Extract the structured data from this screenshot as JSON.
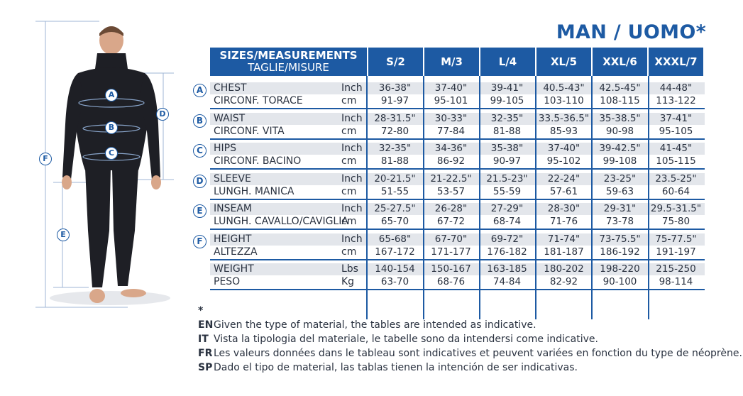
{
  "title": "MAN / UOMO*",
  "header": {
    "line1": "SIZES/MEASUREMENTS",
    "line2": "TAGLIE/MISURE",
    "sizes": [
      "S/2",
      "M/3",
      "L/4",
      "XL/5",
      "XXL/6",
      "XXXL/7"
    ]
  },
  "figure": {
    "markers": [
      "A",
      "B",
      "C",
      "D",
      "E",
      "F"
    ]
  },
  "rows": [
    {
      "badge": "A",
      "label1": "CHEST",
      "label2": "CIRCONF. TORACE",
      "unit1": "Inch",
      "unit2": "cm",
      "v1": [
        "36-38\"",
        "37-40\"",
        "39-41\"",
        "40.5-43\"",
        "42.5-45\"",
        "44-48\""
      ],
      "v2": [
        "91-97",
        "95-101",
        "99-105",
        "103-110",
        "108-115",
        "113-122"
      ]
    },
    {
      "badge": "B",
      "label1": "WAIST",
      "label2": "CIRCONF. VITA",
      "unit1": "Inch",
      "unit2": "cm",
      "v1": [
        "28-31.5\"",
        "30-33\"",
        "32-35\"",
        "33.5-36.5\"",
        "35-38.5\"",
        "37-41\""
      ],
      "v2": [
        "72-80",
        "77-84",
        "81-88",
        "85-93",
        "90-98",
        "95-105"
      ]
    },
    {
      "badge": "C",
      "label1": "HIPS",
      "label2": "CIRCONF. BACINO",
      "unit1": "Inch",
      "unit2": "cm",
      "v1": [
        "32-35\"",
        "34-36\"",
        "35-38\"",
        "37-40\"",
        "39-42.5\"",
        "41-45\""
      ],
      "v2": [
        "81-88",
        "86-92",
        "90-97",
        "95-102",
        "99-108",
        "105-115"
      ]
    },
    {
      "badge": "D",
      "label1": "SLEEVE",
      "label2": "LUNGH. MANICA",
      "unit1": "Inch",
      "unit2": "cm",
      "v1": [
        "20-21.5\"",
        "21-22.5\"",
        "21.5-23\"",
        "22-24\"",
        "23-25\"",
        "23.5-25\""
      ],
      "v2": [
        "51-55",
        "53-57",
        "55-59",
        "57-61",
        "59-63",
        "60-64"
      ]
    },
    {
      "badge": "E",
      "label1": "INSEAM",
      "label2": "LUNGH. CAVALLO/CAVIGLIA",
      "unit1": "Inch",
      "unit2": "cm",
      "v1": [
        "25-27.5\"",
        "26-28\"",
        "27-29\"",
        "28-30\"",
        "29-31\"",
        "29.5-31.5\""
      ],
      "v2": [
        "65-70",
        "67-72",
        "68-74",
        "71-76",
        "73-78",
        "75-80"
      ]
    },
    {
      "badge": "F",
      "label1": "HEIGHT",
      "label2": "ALTEZZA",
      "unit1": "Inch",
      "unit2": "cm",
      "v1": [
        "65-68\"",
        "67-70\"",
        "69-72\"",
        "71-74\"",
        "73-75.5\"",
        "75-77.5\""
      ],
      "v2": [
        "167-172",
        "171-177",
        "176-182",
        "181-187",
        "186-192",
        "191-197"
      ]
    },
    {
      "badge": "",
      "label1": "WEIGHT",
      "label2": "PESO",
      "unit1": "Lbs",
      "unit2": "Kg",
      "v1": [
        "140-154",
        "150-167",
        "163-185",
        "180-202",
        "198-220",
        "215-250"
      ],
      "v2": [
        "63-70",
        "68-76",
        "74-84",
        "82-92",
        "90-100",
        "98-114"
      ]
    }
  ],
  "notes": {
    "star": "*",
    "items": [
      {
        "code": "EN",
        "text": "Given the type of material, the tables are intended as indicative."
      },
      {
        "code": "IT",
        "text": "Vista la tipologia del materiale, le tabelle sono da intendersi come indicative."
      },
      {
        "code": "FR",
        "text": "Les valeurs données dans le tableau sont indicatives et peuvent variées en fonction du type de néoprène."
      },
      {
        "code": "SP",
        "text": "Dado el tipo de material, las tablas tienen la intención de ser indicativas."
      }
    ]
  }
}
